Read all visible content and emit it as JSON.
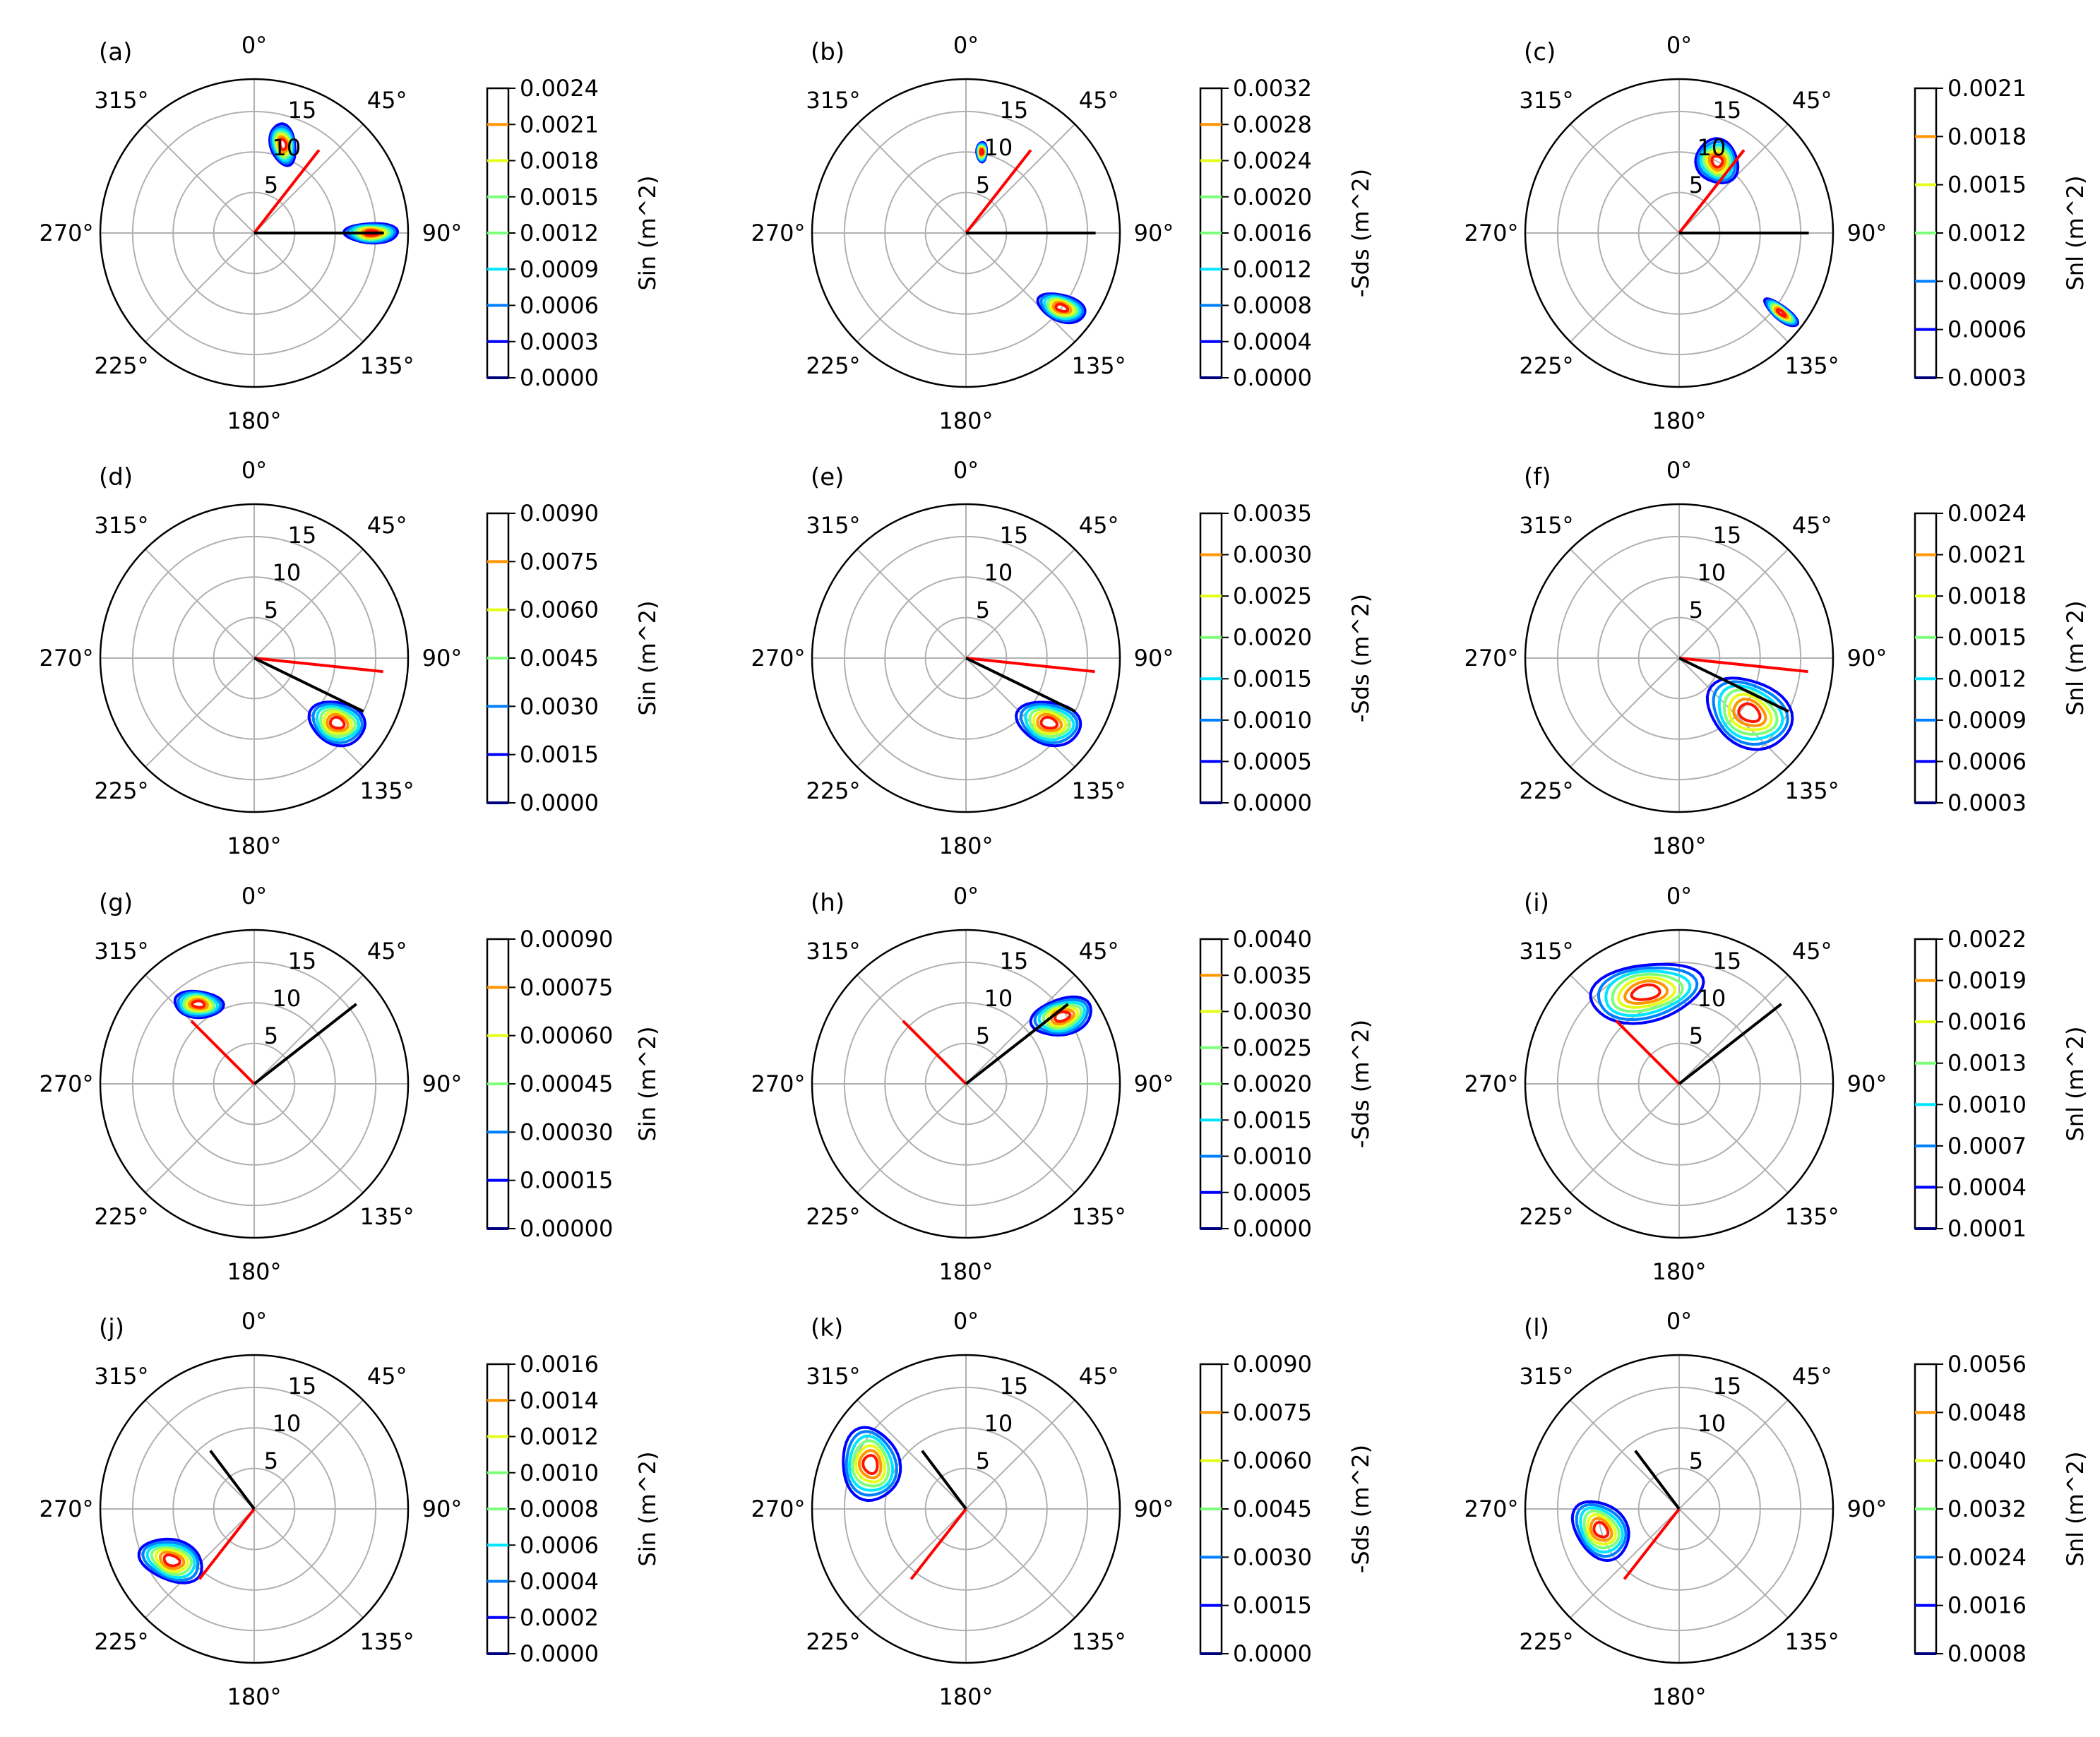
{
  "chart_data": [
    {
      "type": "polar-contour",
      "panel_label": "(a)",
      "colorbar_label": "Sin (m^2)",
      "colorbar_ticks": [
        "0.0024",
        "0.0021",
        "0.0018",
        "0.0015",
        "0.0012",
        "0.0009",
        "0.0006",
        "0.0003",
        "0.0000"
      ],
      "angle_labels": [
        "0°",
        "45°",
        "90°",
        "135°",
        "180°",
        "225°",
        "270°",
        "315°"
      ],
      "radial_ticks": [
        "5",
        "10",
        "15"
      ],
      "red_line": {
        "direction_deg": 38,
        "length": 13
      },
      "black_line": {
        "direction_deg": 90,
        "length": 16
      }
    },
    {
      "type": "polar-contour",
      "panel_label": "(b)",
      "colorbar_label": "-Sds (m^2)",
      "colorbar_ticks": [
        "0.0032",
        "0.0028",
        "0.0024",
        "0.0020",
        "0.0016",
        "0.0012",
        "0.0008",
        "0.0004",
        "0.0000"
      ],
      "angle_labels": [
        "0°",
        "45°",
        "90°",
        "135°",
        "180°",
        "225°",
        "270°",
        "315°"
      ],
      "radial_ticks": [
        "5",
        "10",
        "15"
      ],
      "red_line": {
        "direction_deg": 38,
        "length": 13
      },
      "black_line": {
        "direction_deg": 90,
        "length": 16
      }
    },
    {
      "type": "polar-contour",
      "panel_label": "(c)",
      "colorbar_label": "Snl (m^2)",
      "colorbar_ticks": [
        "0.0021",
        "0.0018",
        "0.0015",
        "0.0012",
        "0.0009",
        "0.0006",
        "0.0003"
      ],
      "angle_labels": [
        "0°",
        "45°",
        "90°",
        "135°",
        "180°",
        "225°",
        "270°",
        "315°"
      ],
      "radial_ticks": [
        "5",
        "10",
        "15"
      ],
      "red_line": {
        "direction_deg": 38,
        "length": 13
      },
      "black_line": {
        "direction_deg": 90,
        "length": 16
      }
    },
    {
      "type": "polar-contour",
      "panel_label": "(d)",
      "colorbar_label": "Sin (m^2)",
      "colorbar_ticks": [
        "0.0090",
        "0.0075",
        "0.0060",
        "0.0045",
        "0.0030",
        "0.0015",
        "0.0000"
      ],
      "angle_labels": [
        "0°",
        "45°",
        "90°",
        "135°",
        "180°",
        "225°",
        "270°",
        "315°"
      ],
      "radial_ticks": [
        "5",
        "10",
        "15"
      ],
      "red_line": {
        "direction_deg": 96,
        "length": 16
      },
      "black_line": {
        "direction_deg": 116,
        "length": 15
      }
    },
    {
      "type": "polar-contour",
      "panel_label": "(e)",
      "colorbar_label": "-Sds (m^2)",
      "colorbar_ticks": [
        "0.0035",
        "0.0030",
        "0.0025",
        "0.0020",
        "0.0015",
        "0.0010",
        "0.0005",
        "0.0000"
      ],
      "angle_labels": [
        "0°",
        "45°",
        "90°",
        "135°",
        "180°",
        "225°",
        "270°",
        "315°"
      ],
      "radial_ticks": [
        "5",
        "10",
        "15"
      ],
      "red_line": {
        "direction_deg": 96,
        "length": 16
      },
      "black_line": {
        "direction_deg": 116,
        "length": 15
      }
    },
    {
      "type": "polar-contour",
      "panel_label": "(f)",
      "colorbar_label": "Snl (m^2)",
      "colorbar_ticks": [
        "0.0024",
        "0.0021",
        "0.0018",
        "0.0015",
        "0.0012",
        "0.0009",
        "0.0006",
        "0.0003"
      ],
      "angle_labels": [
        "0°",
        "45°",
        "90°",
        "135°",
        "180°",
        "225°",
        "270°",
        "315°"
      ],
      "radial_ticks": [
        "5",
        "10",
        "15"
      ],
      "red_line": {
        "direction_deg": 96,
        "length": 16
      },
      "black_line": {
        "direction_deg": 116,
        "length": 15
      }
    },
    {
      "type": "polar-contour",
      "panel_label": "(g)",
      "colorbar_label": "Sin (m^2)",
      "colorbar_ticks": [
        "0.00090",
        "0.00075",
        "0.00060",
        "0.00045",
        "0.00030",
        "0.00015",
        "0.00000"
      ],
      "angle_labels": [
        "0°",
        "45°",
        "90°",
        "135°",
        "180°",
        "225°",
        "270°",
        "315°"
      ],
      "radial_ticks": [
        "5",
        "10",
        "15"
      ],
      "red_line": {
        "direction_deg": 315,
        "length": 11
      },
      "black_line": {
        "direction_deg": 52,
        "length": 16
      }
    },
    {
      "type": "polar-contour",
      "panel_label": "(h)",
      "colorbar_label": "-Sds (m^2)",
      "colorbar_ticks": [
        "0.0040",
        "0.0035",
        "0.0030",
        "0.0025",
        "0.0020",
        "0.0015",
        "0.0010",
        "0.0005",
        "0.0000"
      ],
      "angle_labels": [
        "0°",
        "45°",
        "90°",
        "135°",
        "180°",
        "225°",
        "270°",
        "315°"
      ],
      "radial_ticks": [
        "5",
        "10",
        "15"
      ],
      "red_line": {
        "direction_deg": 315,
        "length": 11
      },
      "black_line": {
        "direction_deg": 52,
        "length": 16
      }
    },
    {
      "type": "polar-contour",
      "panel_label": "(i)",
      "colorbar_label": "Snl (m^2)",
      "colorbar_ticks": [
        "0.0022",
        "0.0019",
        "0.0016",
        "0.0013",
        "0.0010",
        "0.0007",
        "0.0004",
        "0.0001"
      ],
      "angle_labels": [
        "0°",
        "45°",
        "90°",
        "135°",
        "180°",
        "225°",
        "270°",
        "315°"
      ],
      "radial_ticks": [
        "5",
        "10",
        "15"
      ],
      "red_line": {
        "direction_deg": 315,
        "length": 11
      },
      "black_line": {
        "direction_deg": 52,
        "length": 16
      }
    },
    {
      "type": "polar-contour",
      "panel_label": "(j)",
      "colorbar_label": "Sin (m^2)",
      "colorbar_ticks": [
        "0.0016",
        "0.0014",
        "0.0012",
        "0.0010",
        "0.0008",
        "0.0006",
        "0.0004",
        "0.0002",
        "0.0000"
      ],
      "angle_labels": [
        "0°",
        "45°",
        "90°",
        "135°",
        "180°",
        "225°",
        "270°",
        "315°"
      ],
      "radial_ticks": [
        "5",
        "10",
        "15"
      ],
      "red_line": {
        "direction_deg": 218,
        "length": 11
      },
      "black_line": {
        "direction_deg": 323,
        "length": 9
      }
    },
    {
      "type": "polar-contour",
      "panel_label": "(k)",
      "colorbar_label": "-Sds (m^2)",
      "colorbar_ticks": [
        "0.0090",
        "0.0075",
        "0.0060",
        "0.0045",
        "0.0030",
        "0.0015",
        "0.0000"
      ],
      "angle_labels": [
        "0°",
        "45°",
        "90°",
        "135°",
        "180°",
        "225°",
        "270°",
        "315°"
      ],
      "radial_ticks": [
        "5",
        "10",
        "15"
      ],
      "red_line": {
        "direction_deg": 218,
        "length": 11
      },
      "black_line": {
        "direction_deg": 323,
        "length": 9
      }
    },
    {
      "type": "polar-contour",
      "panel_label": "(l)",
      "colorbar_label": "Snl (m^2)",
      "colorbar_ticks": [
        "0.0056",
        "0.0048",
        "0.0040",
        "0.0032",
        "0.0024",
        "0.0016",
        "0.0008"
      ],
      "angle_labels": [
        "0°",
        "45°",
        "90°",
        "135°",
        "180°",
        "225°",
        "270°",
        "315°"
      ],
      "radial_ticks": [
        "5",
        "10",
        "15"
      ],
      "red_line": {
        "direction_deg": 218,
        "length": 11
      },
      "black_line": {
        "direction_deg": 323,
        "length": 9
      }
    }
  ],
  "contour_colors": [
    "#00007f",
    "#0000ff",
    "#0080ff",
    "#00e5ff",
    "#7dff7a",
    "#e5ff19",
    "#ff9500",
    "#ff1400"
  ],
  "line_colors": {
    "red": "#ff0000",
    "black": "#000000"
  }
}
